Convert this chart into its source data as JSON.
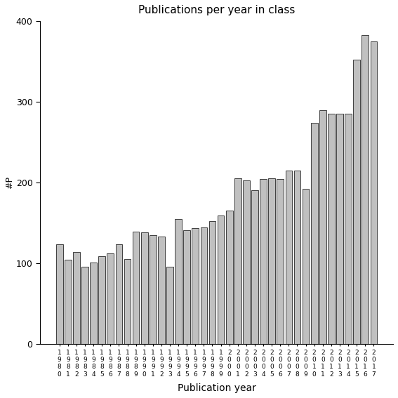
{
  "title": "Publications per year in class",
  "xlabel": "Publication year",
  "ylabel": "#P",
  "years": [
    "1980",
    "1981",
    "1982",
    "1983",
    "1984",
    "1985",
    "1986",
    "1987",
    "1988",
    "1989",
    "1990",
    "1991",
    "1992",
    "1993",
    "1994",
    "1995",
    "1996",
    "1997",
    "1998",
    "1999",
    "2000",
    "2001",
    "2002",
    "2003",
    "2004",
    "2005",
    "2006",
    "2007",
    "2008",
    "2009",
    "2010",
    "2011",
    "2012",
    "2013",
    "2014",
    "2015",
    "2016",
    "2017"
  ],
  "values": [
    123,
    104,
    114,
    96,
    101,
    109,
    112,
    123,
    105,
    139,
    138,
    135,
    133,
    96,
    155,
    141,
    143,
    144,
    152,
    159,
    165,
    205,
    203,
    190,
    204,
    205,
    204,
    215,
    215,
    192,
    274,
    290,
    285,
    285,
    285,
    352,
    383,
    375
  ],
  "bar_color": "#c0c0c0",
  "bar_edge_color": "#000000",
  "ylim": [
    0,
    400
  ],
  "yticks": [
    0,
    100,
    200,
    300,
    400
  ],
  "bg_color": "#ffffff",
  "fig_color": "#ffffff"
}
